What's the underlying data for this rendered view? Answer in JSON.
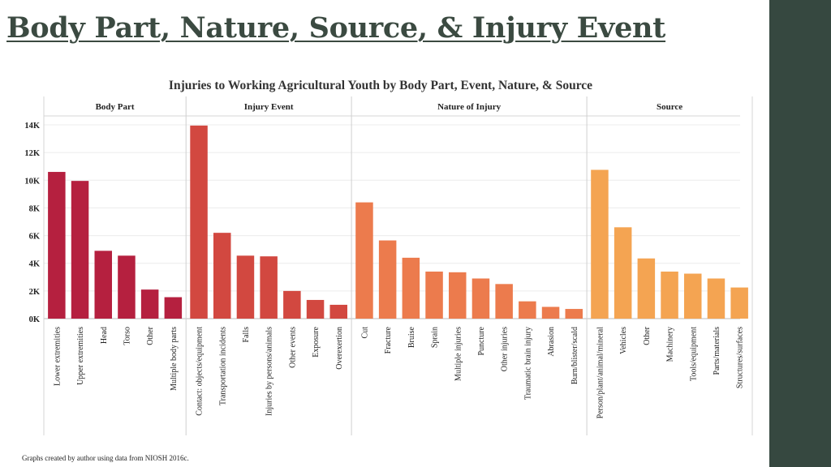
{
  "slide": {
    "title": "Body Part, Nature, Source, & Injury Event",
    "footnote": "Graphs created by author using data from NIOSH 2016c."
  },
  "colors": {
    "background": "#ffffff",
    "side_band": "#364840",
    "title_text": "#3b4a41"
  },
  "chart_data": {
    "type": "bar",
    "title": "Injuries to Working Agricultural Youth by Body Part, Event, Nature, & Source",
    "xlabel": "",
    "ylabel": "",
    "ylim": [
      0,
      14500
    ],
    "yticks": [
      0,
      2000,
      4000,
      6000,
      8000,
      10000,
      12000,
      14000
    ],
    "ytick_labels": [
      "0K",
      "2K",
      "4K",
      "6K",
      "8K",
      "10K",
      "12K",
      "14K"
    ],
    "grid": true,
    "panels": [
      {
        "name": "Body Part",
        "color": "#b5203f",
        "categories": [
          "Lower extremities",
          "Upper extremities",
          "Head",
          "Torso",
          "Other",
          "Multiple body parts"
        ],
        "values": [
          10600,
          9950,
          4900,
          4550,
          2100,
          1550
        ]
      },
      {
        "name": "Injury Event",
        "color": "#d24840",
        "categories": [
          "Contact: objects/equipment",
          "Transportation incidents",
          "Falls",
          "Injuries by persons/animals",
          "Other events",
          "Exposure",
          "Overexertion"
        ],
        "values": [
          13950,
          6200,
          4550,
          4500,
          2000,
          1350,
          1000
        ]
      },
      {
        "name": "Nature of Injury",
        "color": "#ec7b4d",
        "categories": [
          "Cut",
          "Fracture",
          "Bruise",
          "Sprain",
          "Multiple injuries",
          "Puncture",
          "Other injuries",
          "Traumatic brain injury",
          "Abrasion",
          "Burn/blister/scald"
        ],
        "values": [
          8400,
          5650,
          4400,
          3400,
          3350,
          2900,
          2500,
          1250,
          850,
          700
        ]
      },
      {
        "name": "Source",
        "color": "#f4a452",
        "categories": [
          "Person/plant/animal/mineral",
          "Vehicles",
          "Other",
          "Machinery",
          "Tools/equipment",
          "Parts/materials",
          "Structures/surfaces"
        ],
        "values": [
          10750,
          6600,
          4350,
          3400,
          3250,
          2900,
          2250
        ]
      }
    ]
  }
}
